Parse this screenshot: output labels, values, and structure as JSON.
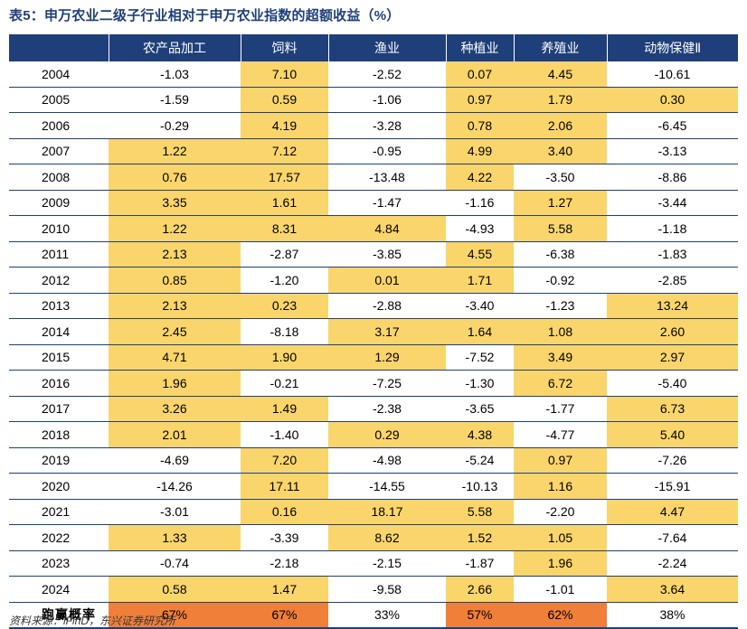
{
  "title": "表5：申万农业二级子行业相对于申万农业指数的超额收益（%）",
  "columns": [
    "",
    "农产品加工",
    "饲料",
    "渔业",
    "种植业",
    "养殖业",
    "动物保健Ⅱ"
  ],
  "highlight_color": "#fad56b",
  "summary_highlight_color": "#f07f3a",
  "header_color": "#1f3f7a",
  "rows": [
    {
      "year": "2004",
      "values": [
        "-1.03",
        "7.10",
        "-2.52",
        "0.07",
        "4.45",
        "-10.61"
      ],
      "hl": [
        false,
        true,
        false,
        true,
        true,
        false
      ]
    },
    {
      "year": "2005",
      "values": [
        "-1.59",
        "0.59",
        "-1.06",
        "0.97",
        "1.79",
        "0.30"
      ],
      "hl": [
        false,
        true,
        false,
        true,
        true,
        true
      ]
    },
    {
      "year": "2006",
      "values": [
        "-0.29",
        "4.19",
        "-3.28",
        "0.78",
        "2.06",
        "-6.45"
      ],
      "hl": [
        false,
        true,
        false,
        true,
        true,
        false
      ]
    },
    {
      "year": "2007",
      "values": [
        "1.22",
        "7.12",
        "-0.95",
        "4.99",
        "3.40",
        "-3.13"
      ],
      "hl": [
        true,
        true,
        false,
        true,
        true,
        false
      ]
    },
    {
      "year": "2008",
      "values": [
        "0.76",
        "17.57",
        "-13.48",
        "4.22",
        "-3.50",
        "-8.86"
      ],
      "hl": [
        true,
        true,
        false,
        true,
        false,
        false
      ]
    },
    {
      "year": "2009",
      "values": [
        "3.35",
        "1.61",
        "-1.47",
        "-1.16",
        "1.27",
        "-3.44"
      ],
      "hl": [
        true,
        true,
        false,
        false,
        true,
        false
      ]
    },
    {
      "year": "2010",
      "values": [
        "1.22",
        "8.31",
        "4.84",
        "-4.93",
        "5.58",
        "-1.18"
      ],
      "hl": [
        true,
        true,
        true,
        false,
        true,
        false
      ]
    },
    {
      "year": "2011",
      "values": [
        "2.13",
        "-2.87",
        "-3.85",
        "4.55",
        "-6.38",
        "-1.83"
      ],
      "hl": [
        true,
        false,
        false,
        true,
        false,
        false
      ]
    },
    {
      "year": "2012",
      "values": [
        "0.85",
        "-1.20",
        "0.01",
        "1.71",
        "-0.92",
        "-2.85"
      ],
      "hl": [
        true,
        false,
        true,
        true,
        false,
        false
      ]
    },
    {
      "year": "2013",
      "values": [
        "2.13",
        "0.23",
        "-2.88",
        "-3.40",
        "-1.23",
        "13.24"
      ],
      "hl": [
        true,
        true,
        false,
        false,
        false,
        true
      ]
    },
    {
      "year": "2014",
      "values": [
        "2.45",
        "-8.18",
        "3.17",
        "1.64",
        "1.08",
        "2.60"
      ],
      "hl": [
        true,
        false,
        true,
        true,
        true,
        true
      ]
    },
    {
      "year": "2015",
      "values": [
        "4.71",
        "1.90",
        "1.29",
        "-7.52",
        "3.49",
        "2.97"
      ],
      "hl": [
        true,
        true,
        true,
        false,
        true,
        true
      ]
    },
    {
      "year": "2016",
      "values": [
        "1.96",
        "-0.21",
        "-7.25",
        "-1.30",
        "6.72",
        "-5.40"
      ],
      "hl": [
        true,
        false,
        false,
        false,
        true,
        false
      ]
    },
    {
      "year": "2017",
      "values": [
        "3.26",
        "1.49",
        "-2.38",
        "-3.65",
        "-1.77",
        "6.73"
      ],
      "hl": [
        true,
        true,
        false,
        false,
        false,
        true
      ]
    },
    {
      "year": "2018",
      "values": [
        "2.01",
        "-1.40",
        "0.29",
        "4.38",
        "-4.77",
        "5.40"
      ],
      "hl": [
        true,
        false,
        true,
        true,
        false,
        true
      ]
    },
    {
      "year": "2019",
      "values": [
        "-4.69",
        "7.20",
        "-4.98",
        "-5.24",
        "0.97",
        "-7.26"
      ],
      "hl": [
        false,
        true,
        false,
        false,
        true,
        false
      ]
    },
    {
      "year": "2020",
      "values": [
        "-14.26",
        "17.11",
        "-14.55",
        "-10.13",
        "1.16",
        "-15.91"
      ],
      "hl": [
        false,
        true,
        false,
        false,
        true,
        false
      ]
    },
    {
      "year": "2021",
      "values": [
        "-3.01",
        "0.16",
        "18.17",
        "5.58",
        "-2.20",
        "4.47"
      ],
      "hl": [
        false,
        true,
        true,
        true,
        false,
        true
      ]
    },
    {
      "year": "2022",
      "values": [
        "1.33",
        "-3.39",
        "8.62",
        "1.52",
        "1.05",
        "-7.64"
      ],
      "hl": [
        true,
        false,
        true,
        true,
        true,
        false
      ]
    },
    {
      "year": "2023",
      "values": [
        "-0.74",
        "-2.18",
        "-2.15",
        "-1.87",
        "1.96",
        "-2.24"
      ],
      "hl": [
        false,
        false,
        false,
        false,
        true,
        false
      ]
    },
    {
      "year": "2024",
      "values": [
        "0.58",
        "1.47",
        "-9.58",
        "2.66",
        "-1.01",
        "3.64"
      ],
      "hl": [
        true,
        true,
        false,
        true,
        false,
        true
      ]
    }
  ],
  "summary": {
    "label": "跑赢概率",
    "values": [
      "67%",
      "67%",
      "33%",
      "57%",
      "62%",
      "38%"
    ],
    "hl": [
      true,
      true,
      false,
      true,
      true,
      false
    ]
  },
  "source": "资料来源：iFinD，东兴证券研究所"
}
